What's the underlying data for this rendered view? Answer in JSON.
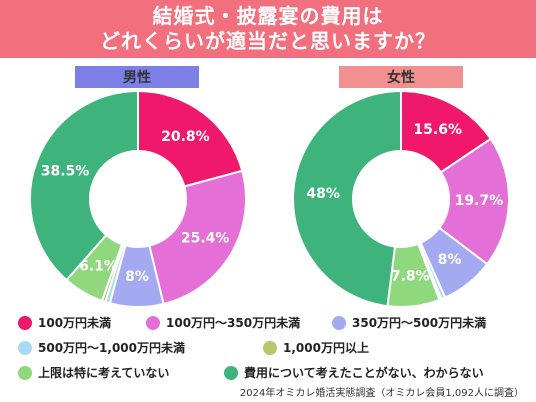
{
  "header": {
    "line1": "結婚式・披露宴の費用は",
    "line2": "どれくらいが適当だと思いますか？"
  },
  "colors": {
    "header_bg": "#f2707d",
    "male_pill_bg": "#7b7fe6",
    "female_pill_bg": "#f28f8f"
  },
  "legend": [
    {
      "label": "100万円未満",
      "color": "#f0186a"
    },
    {
      "label": "100万円～350万円未満",
      "color": "#e46fd6"
    },
    {
      "label": "350万円～500万円未満",
      "color": "#a3aaf2"
    },
    {
      "label": "500万円～1,000万円未満",
      "color": "#a8dbf3"
    },
    {
      "label": "1,000万円以上",
      "color": "#b9c76a"
    },
    {
      "label": "上限は特に考えていない",
      "color": "#8fd87e"
    },
    {
      "label": "費用について考えたことがない、わからない",
      "color": "#3fb37c"
    }
  ],
  "source": "2024年オミカレ婚活実態調査（オミカレ会員1,092人に調査）",
  "chart_data": [
    {
      "type": "pie",
      "title": "男性",
      "categories": [
        "100万円未満",
        "100万円～350万円未満",
        "350万円～500万円未満",
        "500万円～1,000万円未満",
        "1,000万円以上",
        "上限は特に考えていない",
        "費用について考えたことがない、わからない"
      ],
      "values": [
        20.8,
        25.4,
        8,
        0.7,
        0.5,
        6.1,
        38.5
      ],
      "labels": [
        "20.8%",
        "25.4%",
        "8%",
        "",
        "",
        "6.1%",
        "38.5%"
      ],
      "donut": true
    },
    {
      "type": "pie",
      "title": "女性",
      "categories": [
        "100万円未満",
        "100万円～350万円未満",
        "350万円～500万円未満",
        "500万円～1,000万円未満",
        "1,000万円以上",
        "上限は特に考えていない",
        "費用について考えたことがない、わからない"
      ],
      "values": [
        15.6,
        19.7,
        8,
        0.6,
        0.3,
        7.8,
        48
      ],
      "labels": [
        "15.6%",
        "19.7%",
        "8%",
        "",
        "",
        "7.8%",
        "48%"
      ],
      "donut": true
    }
  ]
}
